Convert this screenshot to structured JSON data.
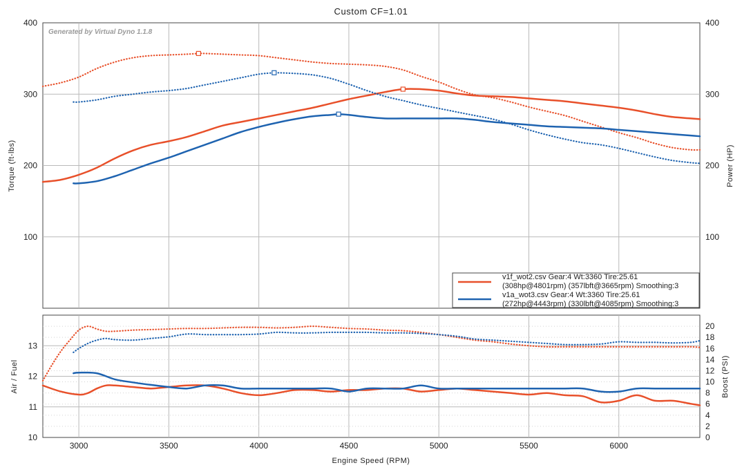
{
  "chart_data": [
    {
      "id": "dyno",
      "type": "line",
      "title": "Custom CF=1.01",
      "watermark": "Generated by Virtual Dyno 1.1.8",
      "xlabel": "Engine Speed (RPM)",
      "ylabel": "Torque (ft-lbs)",
      "ylabel_right": "Power (HP)",
      "xlim": [
        2800,
        6450
      ],
      "ylim": [
        0,
        400
      ],
      "ylim_right": [
        0,
        400
      ],
      "x_ticks": [
        3000,
        3500,
        4000,
        4500,
        5000,
        5500,
        6000
      ],
      "y_ticks": [
        100,
        200,
        300,
        400
      ],
      "grid": true,
      "legend_position": "bottom-right",
      "series": [
        {
          "name": "v1f power",
          "axis": "right",
          "color": "#e8502a",
          "style": "solid",
          "x": [
            2800,
            2900,
            3000,
            3100,
            3200,
            3300,
            3400,
            3500,
            3600,
            3700,
            3800,
            3900,
            4000,
            4100,
            4200,
            4300,
            4400,
            4500,
            4600,
            4700,
            4800,
            4900,
            5000,
            5100,
            5200,
            5300,
            5400,
            5500,
            5600,
            5700,
            5800,
            5900,
            6000,
            6100,
            6200,
            6300,
            6400,
            6450
          ],
          "y": [
            177,
            180,
            187,
            197,
            210,
            221,
            229,
            234,
            240,
            248,
            256,
            261,
            266,
            271,
            276,
            281,
            287,
            293,
            298,
            303,
            307,
            307,
            305,
            301,
            298,
            297,
            296,
            294,
            292,
            290,
            287,
            284,
            281,
            277,
            272,
            268,
            266,
            265
          ]
        },
        {
          "name": "v1f torque",
          "axis": "left",
          "color": "#e8502a",
          "style": "dotted",
          "x": [
            2800,
            2900,
            3000,
            3100,
            3200,
            3300,
            3400,
            3500,
            3600,
            3665,
            3700,
            3800,
            3900,
            4000,
            4100,
            4200,
            4300,
            4400,
            4500,
            4600,
            4700,
            4800,
            4900,
            5000,
            5100,
            5200,
            5300,
            5400,
            5500,
            5600,
            5700,
            5800,
            5900,
            6000,
            6100,
            6200,
            6300,
            6400,
            6450
          ],
          "y": [
            311,
            316,
            324,
            336,
            345,
            351,
            354,
            355,
            356,
            357,
            357,
            356,
            355,
            354,
            351,
            348,
            345,
            343,
            342,
            341,
            339,
            334,
            325,
            317,
            307,
            299,
            295,
            289,
            282,
            276,
            270,
            262,
            254,
            246,
            239,
            231,
            225,
            222,
            222
          ]
        },
        {
          "name": "v1a power",
          "axis": "right",
          "color": "#1e63b0",
          "style": "solid",
          "x": [
            2970,
            3000,
            3100,
            3200,
            3300,
            3400,
            3500,
            3600,
            3700,
            3800,
            3900,
            4000,
            4100,
            4200,
            4300,
            4400,
            4443,
            4500,
            4600,
            4700,
            4800,
            4900,
            5000,
            5100,
            5200,
            5300,
            5400,
            5500,
            5600,
            5700,
            5800,
            5900,
            6000,
            6100,
            6200,
            6300,
            6400,
            6450
          ],
          "y": [
            175,
            175,
            178,
            185,
            194,
            203,
            211,
            220,
            229,
            238,
            247,
            254,
            260,
            265,
            269,
            271,
            272,
            271,
            268,
            266,
            266,
            266,
            266,
            266,
            264,
            261,
            259,
            257,
            255,
            254,
            253,
            252,
            250,
            248,
            246,
            244,
            242,
            241
          ]
        },
        {
          "name": "v1a torque",
          "axis": "left",
          "color": "#1e63b0",
          "style": "dotted",
          "x": [
            2970,
            3000,
            3100,
            3200,
            3300,
            3400,
            3500,
            3600,
            3700,
            3800,
            3900,
            4000,
            4085,
            4100,
            4200,
            4300,
            4400,
            4500,
            4600,
            4700,
            4800,
            4900,
            5000,
            5100,
            5200,
            5300,
            5400,
            5500,
            5600,
            5700,
            5800,
            5900,
            6000,
            6100,
            6200,
            6300,
            6400,
            6450
          ],
          "y": [
            289,
            289,
            292,
            297,
            300,
            303,
            305,
            308,
            313,
            318,
            323,
            328,
            330,
            330,
            329,
            327,
            322,
            314,
            305,
            297,
            291,
            285,
            280,
            275,
            270,
            265,
            258,
            250,
            243,
            237,
            232,
            229,
            224,
            218,
            212,
            207,
            204,
            203
          ]
        }
      ],
      "markers": [
        {
          "series": "v1f power",
          "x": 4801,
          "y": 307
        },
        {
          "series": "v1f torque",
          "x": 3665,
          "y": 357
        },
        {
          "series": "v1a power",
          "x": 4443,
          "y": 272
        },
        {
          "series": "v1a torque",
          "x": 4085,
          "y": 330
        }
      ],
      "legend": [
        {
          "line1": "v1f_wot2.csv Gear:4 Wt:3360 Tire:25.61",
          "line2": "(308hp@4801rpm) (357lbft@3665rpm) Smoothing:3",
          "color": "#e8502a"
        },
        {
          "line1": "v1a_wot3.csv Gear:4 Wt:3360 Tire:25.61",
          "line2": "(272hp@4443rpm) (330lbft@4085rpm) Smoothing:3",
          "color": "#1e63b0"
        }
      ]
    },
    {
      "id": "afr",
      "type": "line",
      "xlabel": "Engine Speed (RPM)",
      "ylabel": "Air / Fuel",
      "ylabel_right": "Boost (PSI)",
      "xlim": [
        2800,
        6450
      ],
      "ylim": [
        10,
        14
      ],
      "ylim_right": [
        0,
        22
      ],
      "x_ticks": [
        3000,
        3500,
        4000,
        4500,
        5000,
        5500,
        6000
      ],
      "y_ticks": [
        10,
        11,
        12,
        13
      ],
      "y_ticks_right": [
        0,
        2,
        4,
        6,
        8,
        10,
        12,
        14,
        16,
        18,
        20
      ],
      "grid": true,
      "series": [
        {
          "name": "v1f air/fuel",
          "axis": "left",
          "color": "#e8502a",
          "style": "solid",
          "x": [
            2800,
            2900,
            3000,
            3050,
            3100,
            3150,
            3200,
            3300,
            3400,
            3500,
            3600,
            3700,
            3800,
            3900,
            4000,
            4100,
            4200,
            4300,
            4400,
            4500,
            4600,
            4700,
            4800,
            4900,
            5000,
            5100,
            5200,
            5300,
            5400,
            5500,
            5600,
            5700,
            5800,
            5900,
            6000,
            6100,
            6200,
            6300,
            6400,
            6450
          ],
          "y": [
            11.7,
            11.5,
            11.4,
            11.45,
            11.6,
            11.7,
            11.7,
            11.65,
            11.6,
            11.65,
            11.7,
            11.7,
            11.6,
            11.45,
            11.38,
            11.45,
            11.55,
            11.55,
            11.5,
            11.55,
            11.55,
            11.6,
            11.6,
            11.5,
            11.55,
            11.6,
            11.55,
            11.5,
            11.45,
            11.4,
            11.45,
            11.38,
            11.35,
            11.15,
            11.2,
            11.38,
            11.2,
            11.2,
            11.1,
            11.05
          ]
        },
        {
          "name": "v1a air/fuel",
          "axis": "left",
          "color": "#1e63b0",
          "style": "solid",
          "x": [
            2970,
            3000,
            3100,
            3200,
            3300,
            3400,
            3500,
            3600,
            3700,
            3800,
            3900,
            4000,
            4100,
            4200,
            4300,
            4400,
            4500,
            4600,
            4700,
            4800,
            4900,
            5000,
            5100,
            5200,
            5300,
            5400,
            5500,
            5600,
            5700,
            5800,
            5900,
            6000,
            6100,
            6200,
            6300,
            6400,
            6450
          ],
          "y": [
            12.1,
            12.12,
            12.1,
            11.9,
            11.8,
            11.72,
            11.65,
            11.6,
            11.7,
            11.7,
            11.6,
            11.6,
            11.6,
            11.6,
            11.6,
            11.6,
            11.5,
            11.6,
            11.6,
            11.6,
            11.7,
            11.6,
            11.6,
            11.6,
            11.6,
            11.6,
            11.6,
            11.6,
            11.6,
            11.6,
            11.5,
            11.5,
            11.6,
            11.6,
            11.6,
            11.6,
            11.6
          ]
        },
        {
          "name": "v1f boost",
          "axis": "right",
          "color": "#e8502a",
          "style": "dotted",
          "x": [
            2800,
            2850,
            2900,
            2950,
            3000,
            3050,
            3100,
            3150,
            3200,
            3300,
            3400,
            3500,
            3600,
            3700,
            3800,
            3900,
            4000,
            4100,
            4200,
            4300,
            4400,
            4500,
            4600,
            4700,
            4800,
            4900,
            5000,
            5100,
            5200,
            5300,
            5400,
            5500,
            5600,
            5700,
            5800,
            5900,
            6000,
            6100,
            6200,
            6300,
            6400,
            6450
          ],
          "y": [
            10.2,
            13,
            15.5,
            17.5,
            19.3,
            20,
            19.5,
            19.1,
            19.1,
            19.3,
            19.4,
            19.5,
            19.6,
            19.6,
            19.7,
            19.8,
            19.8,
            19.7,
            19.8,
            20,
            19.8,
            19.6,
            19.5,
            19.3,
            19.2,
            18.9,
            18.5,
            18,
            17.5,
            17.2,
            16.8,
            16.5,
            16.3,
            16.3,
            16.3,
            16.3,
            16.3,
            16.3,
            16.3,
            16.3,
            16.3,
            16.2
          ]
        },
        {
          "name": "v1a boost",
          "axis": "right",
          "color": "#1e63b0",
          "style": "dotted",
          "x": [
            2970,
            3000,
            3050,
            3100,
            3150,
            3200,
            3300,
            3400,
            3500,
            3600,
            3700,
            3800,
            3900,
            4000,
            4100,
            4200,
            4300,
            4400,
            4500,
            4600,
            4700,
            4800,
            4900,
            5000,
            5100,
            5200,
            5300,
            5400,
            5500,
            5600,
            5700,
            5800,
            5900,
            6000,
            6100,
            6200,
            6300,
            6400,
            6450
          ],
          "y": [
            15.3,
            16,
            16.9,
            17.5,
            17.8,
            17.6,
            17.5,
            17.8,
            18.1,
            18.6,
            18.5,
            18.5,
            18.5,
            18.6,
            18.9,
            18.8,
            18.8,
            18.9,
            18.9,
            18.9,
            18.8,
            18.8,
            18.7,
            18.5,
            18.2,
            17.7,
            17.5,
            17.3,
            17.1,
            16.9,
            16.7,
            16.7,
            16.8,
            17.2,
            17.1,
            17.1,
            17,
            17.1,
            17.4
          ]
        }
      ]
    }
  ]
}
